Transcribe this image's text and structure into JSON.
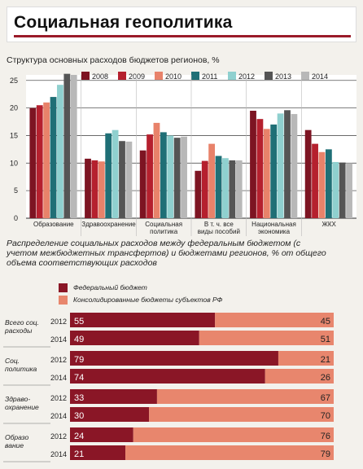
{
  "header": {
    "title": "Социальная геополитика"
  },
  "chart_data": [
    {
      "type": "bar",
      "title": "Структура основных расходов бюджетов регионов, %",
      "categories": [
        "Образование",
        "Здравоохранение",
        "Социальная политика",
        "В т. ч. все виды пособий",
        "Национальная экономика",
        "ЖКХ"
      ],
      "ylim": [
        0,
        26
      ],
      "yticks": [
        0,
        5,
        10,
        15,
        20,
        25
      ],
      "grid": true,
      "legend": "top-right",
      "series": [
        {
          "name": "2008",
          "color": "#7d1422",
          "values": [
            20.0,
            10.8,
            12.3,
            8.6,
            19.5,
            16.0
          ]
        },
        {
          "name": "2009",
          "color": "#b5202e",
          "values": [
            20.5,
            10.5,
            15.2,
            10.4,
            18.0,
            13.5
          ]
        },
        {
          "name": "2010",
          "color": "#e8826a",
          "values": [
            21.0,
            10.3,
            17.3,
            13.5,
            16.2,
            12.0
          ]
        },
        {
          "name": "2011",
          "color": "#1f6f76",
          "values": [
            22.0,
            15.4,
            15.6,
            11.3,
            17.0,
            12.5
          ]
        },
        {
          "name": "2012",
          "color": "#8fd0cf",
          "values": [
            24.2,
            16.0,
            15.0,
            10.9,
            19.0,
            10.2
          ]
        },
        {
          "name": "2013",
          "color": "#555555",
          "values": [
            26.2,
            14.0,
            14.6,
            10.5,
            19.6,
            10.1
          ]
        },
        {
          "name": "2014",
          "color": "#b8b8b8",
          "values": [
            26.0,
            13.9,
            14.8,
            10.5,
            18.9,
            10.0
          ]
        }
      ]
    },
    {
      "type": "bar",
      "orientation": "horizontal-stacked",
      "title": "Распределение социальных расходов между федеральным бюджетом (с учетом межбюджетных трансфертов) и бюджетами регионов, % от общего объема соответствующих расходов",
      "legend": "top-left",
      "series": [
        {
          "name": "Федеральный бюджет",
          "color": "#8a1626"
        },
        {
          "name": "Консолидированные бюджеты субъектов РФ",
          "color": "#e8866d"
        }
      ],
      "groups": [
        {
          "label": "Всего соц. расходы",
          "rows": [
            {
              "year": "2012",
              "federal": 55,
              "regional": 45
            },
            {
              "year": "2014",
              "federal": 49,
              "regional": 51
            }
          ]
        },
        {
          "label": "Соц. политика",
          "rows": [
            {
              "year": "2012",
              "federal": 79,
              "regional": 21
            },
            {
              "year": "2014",
              "federal": 74,
              "regional": 26
            }
          ]
        },
        {
          "label": "Здраво-охранение",
          "rows": [
            {
              "year": "2012",
              "federal": 33,
              "regional": 67
            },
            {
              "year": "2014",
              "federal": 30,
              "regional": 70
            }
          ]
        },
        {
          "label": "Образо вание",
          "rows": [
            {
              "year": "2012",
              "federal": 24,
              "regional": 76
            },
            {
              "year": "2014",
              "federal": 21,
              "regional": 79
            }
          ]
        }
      ]
    }
  ]
}
